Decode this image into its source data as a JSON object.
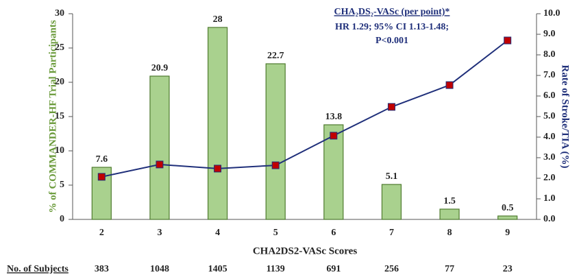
{
  "chart_data": {
    "type": "bar",
    "annotation": [
      "CHA₂DS₂-VASc (per point)*",
      "HR 1.29; 95% CI 1.13-1.48;",
      "P<0.001"
    ],
    "xlabel": "CHA2DS2-VASc Scores",
    "ylabel": "% of COMMANDER-HF Trial Participants",
    "y2label": "Rate of Stroke/TIA (%)",
    "categories": [
      "2",
      "3",
      "4",
      "5",
      "6",
      "7",
      "8",
      "9"
    ],
    "series": [
      {
        "type": "bar",
        "color": "#a9d18e",
        "values": [
          7.6,
          20.9,
          28,
          22.7,
          13.8,
          5.1,
          1.5,
          0.5
        ]
      },
      {
        "type": "line",
        "color": "#1f2f7a",
        "marker_color": "#c00000",
        "axis": "y2",
        "values": [
          2.07,
          2.67,
          2.47,
          2.63,
          4.07,
          5.47,
          6.53,
          8.7
        ]
      }
    ],
    "ylim": [
      0,
      30
    ],
    "yticks": [
      0,
      5,
      10,
      15,
      20,
      25,
      30
    ],
    "y2lim": [
      0,
      10
    ],
    "y2ticks": [
      {
        "value": 0,
        "label": "0.0"
      },
      {
        "value": 1,
        "label": "1.0"
      },
      {
        "value": 2,
        "label": "2.0"
      },
      {
        "value": 3,
        "label": "3.0"
      },
      {
        "value": 4,
        "label": "4.0"
      },
      {
        "value": 5,
        "label": "5.0"
      },
      {
        "value": 6,
        "label": "6.0"
      },
      {
        "value": 7,
        "label": "7.0"
      },
      {
        "value": 8,
        "label": "8.0"
      },
      {
        "value": 9,
        "label": "9.0"
      },
      {
        "value": 10,
        "label": "10.0"
      }
    ],
    "subjects_label": "No. of Subjects",
    "subjects": [
      383,
      1048,
      1405,
      1139,
      691,
      256,
      77,
      23
    ]
  }
}
